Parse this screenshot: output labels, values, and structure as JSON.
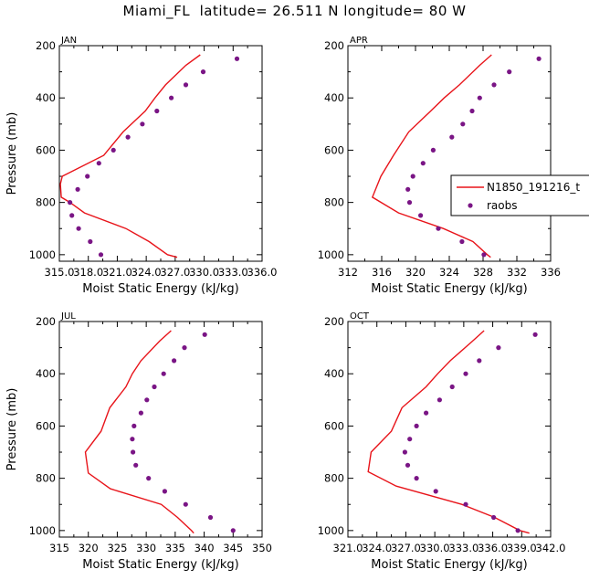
{
  "title": "Miami_FL  latitude= 26.511 N longitude= 80 W",
  "colors": {
    "model": "#e8141a",
    "obs": "#7a1585",
    "axis": "#000000"
  },
  "chart_data": [
    {
      "type": "line",
      "panel": "JAN",
      "xlabel": "Moist Static Energy (kJ/kg)",
      "ylabel": "Pressure (mb)",
      "xlim": [
        315.0,
        336.0
      ],
      "ylim": [
        1025,
        200
      ],
      "xticks": [
        315.0,
        318.0,
        321.0,
        324.0,
        327.0,
        330.0,
        333.0,
        336.0
      ],
      "xtick_labels": [
        "315.0",
        "318.0",
        "321.0",
        "324.0",
        "327.0",
        "330.0",
        "333.0",
        "336.0"
      ],
      "yticks": [
        200,
        400,
        600,
        800,
        1000
      ],
      "model": {
        "name": "N1850_191216_t",
        "pressure": [
          235,
          275,
          350,
          400,
          450,
          530,
          620,
          700,
          730,
          780,
          800,
          840,
          900,
          950,
          1000,
          1010
        ],
        "mse": [
          329.6,
          328.1,
          326.0,
          324.9,
          323.9,
          321.6,
          319.6,
          315.3,
          315.1,
          315.2,
          316.1,
          317.6,
          321.9,
          324.3,
          326.2,
          327.2
        ]
      },
      "obs": {
        "name": "raobs",
        "pressure": [
          250,
          300,
          350,
          400,
          450,
          500,
          550,
          600,
          650,
          700,
          750,
          800,
          850,
          900,
          950,
          1000
        ],
        "mse": [
          333.4,
          329.9,
          328.1,
          326.6,
          325.1,
          323.6,
          322.1,
          320.6,
          319.1,
          317.9,
          316.9,
          316.1,
          316.3,
          317.0,
          318.2,
          319.3
        ]
      }
    },
    {
      "type": "line",
      "panel": "APR",
      "xlabel": "Moist Static Energy (kJ/kg)",
      "ylabel": "",
      "xlim": [
        312,
        336
      ],
      "ylim": [
        1025,
        200
      ],
      "xticks": [
        312,
        316,
        320,
        324,
        328,
        332,
        336
      ],
      "xtick_labels": [
        "312",
        "316",
        "320",
        "324",
        "328",
        "332",
        "336"
      ],
      "yticks": [
        200,
        400,
        600,
        800,
        1000
      ],
      "model": {
        "name": "N1850_191216_t",
        "pressure": [
          235,
          275,
          350,
          400,
          450,
          530,
          620,
          700,
          780,
          840,
          900,
          950,
          1000,
          1010
        ],
        "mse": [
          329.0,
          327.6,
          325.2,
          323.4,
          321.8,
          319.2,
          317.4,
          315.9,
          314.9,
          318.0,
          323.3,
          326.8,
          328.5,
          328.9
        ]
      },
      "obs": {
        "name": "raobs",
        "pressure": [
          250,
          300,
          350,
          400,
          450,
          500,
          550,
          600,
          650,
          700,
          750,
          800,
          850,
          900,
          950,
          1000
        ],
        "mse": [
          334.6,
          331.1,
          329.3,
          327.6,
          326.7,
          325.6,
          324.3,
          322.1,
          320.9,
          319.7,
          319.1,
          319.3,
          320.6,
          322.7,
          325.5,
          328.1
        ]
      },
      "legend": {
        "placement": "center-right",
        "entries": [
          "N1850_191216_t",
          "raobs"
        ]
      }
    },
    {
      "type": "line",
      "panel": "JUL",
      "xlabel": "Moist Static Energy (kJ/kg)",
      "ylabel": "Pressure (mb)",
      "xlim": [
        315,
        350
      ],
      "ylim": [
        1025,
        200
      ],
      "xticks": [
        315,
        320,
        325,
        330,
        335,
        340,
        345,
        350
      ],
      "xtick_labels": [
        "315",
        "320",
        "325",
        "330",
        "335",
        "340",
        "345",
        "350"
      ],
      "yticks": [
        200,
        400,
        600,
        800,
        1000
      ],
      "model": {
        "name": "N1850_191216_t",
        "pressure": [
          235,
          275,
          350,
          400,
          450,
          530,
          620,
          700,
          780,
          840,
          900,
          950,
          1000,
          1010
        ],
        "mse": [
          334.3,
          332.3,
          329.1,
          327.6,
          326.5,
          323.7,
          322.2,
          319.5,
          320.0,
          323.8,
          332.6,
          335.4,
          337.8,
          338.2
        ]
      },
      "obs": {
        "name": "raobs",
        "pressure": [
          250,
          300,
          350,
          400,
          450,
          500,
          550,
          600,
          650,
          700,
          750,
          800,
          850,
          900,
          950,
          1000
        ],
        "mse": [
          340.1,
          336.6,
          334.8,
          333.0,
          331.4,
          330.1,
          329.1,
          327.9,
          327.6,
          327.7,
          328.2,
          330.4,
          333.2,
          336.8,
          341.1,
          345.0
        ]
      }
    },
    {
      "type": "line",
      "panel": "OCT",
      "xlabel": "Moist Static Energy (kJ/kg)",
      "ylabel": "",
      "xlim": [
        321.0,
        342.0
      ],
      "ylim": [
        1025,
        200
      ],
      "xticks": [
        321.0,
        324.0,
        327.0,
        330.0,
        333.0,
        336.0,
        339.0,
        342.0
      ],
      "xtick_labels": [
        "321.0",
        "324.0",
        "327.0",
        "330.0",
        "333.0",
        "336.0",
        "339.0",
        "342.0"
      ],
      "yticks": [
        200,
        400,
        600,
        800,
        1000
      ],
      "model": {
        "name": "N1850_191216_t",
        "pressure": [
          235,
          275,
          350,
          400,
          450,
          530,
          620,
          700,
          775,
          830,
          900,
          950,
          1000,
          1010
        ],
        "mse": [
          335.1,
          333.9,
          331.6,
          330.3,
          329.1,
          326.6,
          325.5,
          323.4,
          323.1,
          326.0,
          332.8,
          336.2,
          338.8,
          339.8
        ]
      },
      "obs": {
        "name": "raobs",
        "pressure": [
          250,
          300,
          350,
          400,
          450,
          500,
          550,
          600,
          650,
          700,
          750,
          800,
          850,
          900,
          950,
          1000
        ],
        "mse": [
          340.4,
          336.6,
          334.6,
          333.2,
          331.8,
          330.5,
          329.1,
          328.1,
          327.4,
          326.9,
          327.2,
          328.1,
          330.1,
          333.2,
          336.1,
          338.6
        ]
      }
    }
  ]
}
